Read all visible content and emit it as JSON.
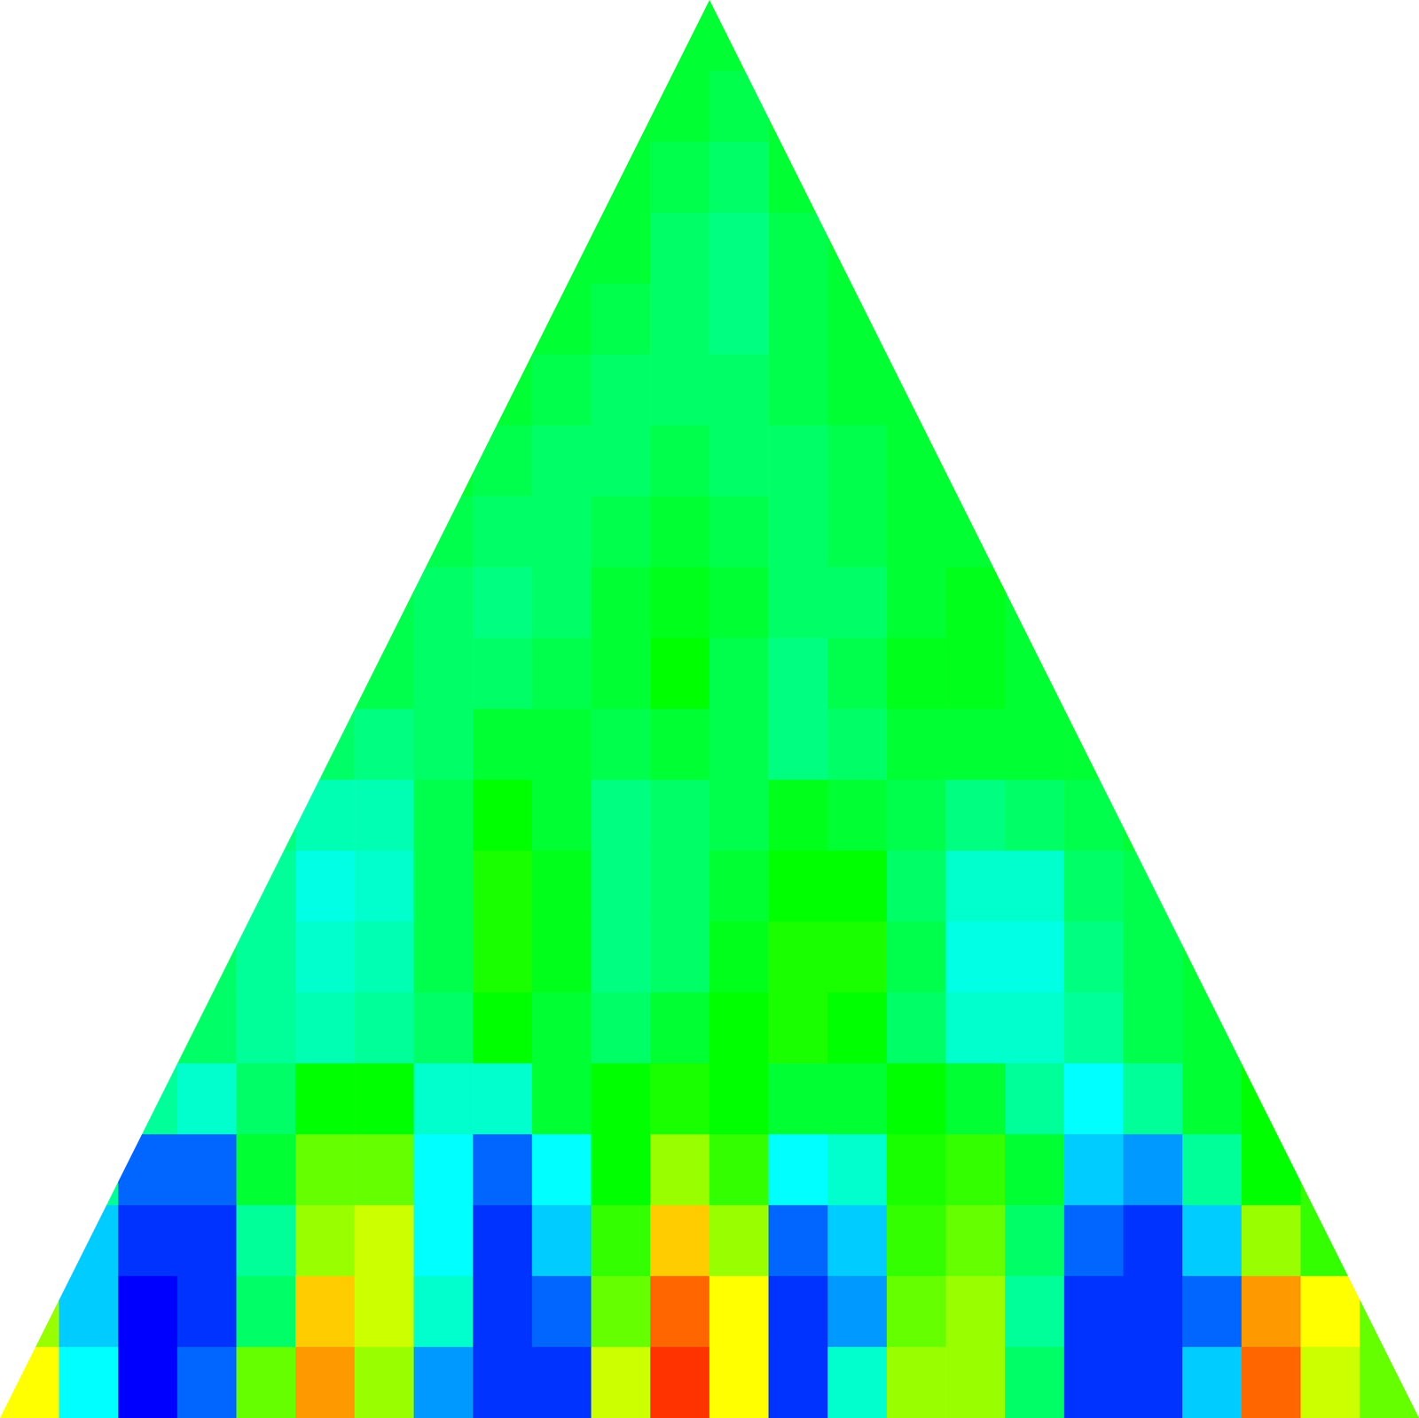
{
  "chart_data": {
    "type": "heatmap",
    "tick_labels": false,
    "grid": false,
    "color_range": [
      -1,
      1
    ],
    "cells": [
      [
        null,
        null,
        null,
        null,
        null,
        null,
        null,
        null,
        null,
        null,
        null,
        -0.1,
        -0.1,
        null,
        null,
        null,
        null,
        null,
        null,
        null,
        null,
        null,
        null,
        null
      ],
      [
        null,
        null,
        null,
        null,
        null,
        null,
        null,
        null,
        null,
        null,
        -0.1,
        -0.1,
        -0.15,
        -0.1,
        null,
        null,
        null,
        null,
        null,
        null,
        null,
        null,
        null,
        null
      ],
      [
        null,
        null,
        null,
        null,
        null,
        null,
        null,
        null,
        null,
        null,
        -0.1,
        -0.15,
        -0.2,
        -0.1,
        null,
        null,
        null,
        null,
        null,
        null,
        null,
        null,
        null,
        null
      ],
      [
        null,
        null,
        null,
        null,
        null,
        null,
        null,
        null,
        null,
        -0.1,
        -0.1,
        -0.2,
        -0.25,
        -0.15,
        -0.1,
        null,
        null,
        null,
        null,
        null,
        null,
        null,
        null,
        null
      ],
      [
        null,
        null,
        null,
        null,
        null,
        null,
        null,
        null,
        null,
        -0.1,
        -0.15,
        -0.2,
        -0.25,
        -0.15,
        -0.1,
        null,
        null,
        null,
        null,
        null,
        null,
        null,
        null,
        null
      ],
      [
        null,
        null,
        null,
        null,
        null,
        null,
        null,
        null,
        -0.1,
        -0.15,
        -0.2,
        -0.2,
        -0.2,
        -0.15,
        -0.1,
        -0.1,
        null,
        null,
        null,
        null,
        null,
        null,
        null,
        null
      ],
      [
        null,
        null,
        null,
        null,
        null,
        null,
        null,
        -0.1,
        -0.15,
        -0.2,
        -0.2,
        -0.15,
        -0.2,
        -0.2,
        -0.15,
        -0.1,
        -0.1,
        null,
        null,
        null,
        null,
        null,
        null,
        null
      ],
      [
        null,
        null,
        null,
        null,
        null,
        null,
        null,
        -0.15,
        -0.2,
        -0.2,
        -0.15,
        -0.1,
        -0.15,
        -0.2,
        -0.15,
        -0.1,
        -0.1,
        null,
        null,
        null,
        null,
        null,
        null,
        null
      ],
      [
        null,
        null,
        null,
        null,
        null,
        null,
        -0.15,
        -0.2,
        -0.25,
        -0.2,
        -0.1,
        -0.05,
        -0.1,
        -0.2,
        -0.2,
        -0.1,
        -0.05,
        -0.1,
        null,
        null,
        null,
        null,
        null,
        null
      ],
      [
        null,
        null,
        null,
        null,
        null,
        null,
        -0.15,
        -0.2,
        -0.2,
        -0.15,
        -0.1,
        0,
        -0.15,
        -0.25,
        -0.15,
        -0.05,
        -0.05,
        -0.1,
        null,
        null,
        null,
        null,
        null,
        null
      ],
      [
        null,
        null,
        null,
        null,
        null,
        -0.2,
        -0.25,
        -0.2,
        -0.1,
        -0.1,
        -0.15,
        -0.1,
        -0.15,
        -0.25,
        -0.2,
        -0.1,
        -0.1,
        -0.1,
        -0.1,
        null,
        null,
        null,
        null,
        null
      ],
      [
        null,
        null,
        null,
        null,
        -0.25,
        -0.35,
        -0.35,
        -0.15,
        0,
        -0.1,
        -0.25,
        -0.2,
        -0.15,
        -0.05,
        -0.1,
        -0.15,
        -0.25,
        -0.2,
        -0.15,
        -0.1,
        null,
        null,
        null,
        null
      ],
      [
        null,
        null,
        null,
        null,
        -0.3,
        -0.45,
        -0.4,
        -0.15,
        0.05,
        -0.05,
        -0.25,
        -0.2,
        -0.1,
        0,
        0,
        -0.2,
        -0.4,
        -0.4,
        -0.2,
        -0.15,
        null,
        null,
        null,
        null
      ],
      [
        null,
        null,
        null,
        -0.2,
        -0.3,
        -0.4,
        -0.35,
        -0.15,
        0.05,
        -0.05,
        -0.25,
        -0.2,
        -0.05,
        0.05,
        0.05,
        -0.15,
        -0.45,
        -0.45,
        -0.25,
        -0.15,
        -0.1,
        null,
        null,
        null
      ],
      [
        null,
        null,
        null,
        -0.2,
        -0.3,
        -0.35,
        -0.3,
        -0.2,
        0,
        -0.1,
        -0.2,
        -0.1,
        0,
        0.05,
        0,
        -0.2,
        -0.4,
        -0.4,
        -0.3,
        -0.15,
        -0.1,
        null,
        null,
        null
      ],
      [
        null,
        null,
        -0.3,
        -0.4,
        -0.2,
        0,
        0,
        -0.4,
        -0.4,
        -0.1,
        0,
        0.05,
        0,
        -0.1,
        -0.1,
        0,
        -0.1,
        -0.3,
        -0.5,
        -0.3,
        -0.1,
        0,
        null,
        null
      ],
      [
        null,
        -0.3,
        -0.8,
        -0.8,
        -0.1,
        0.2,
        0.2,
        -0.5,
        -0.8,
        -0.5,
        0,
        0.3,
        0.1,
        -0.5,
        -0.4,
        0.05,
        0.1,
        -0.1,
        -0.6,
        -0.7,
        -0.3,
        0,
        0.1,
        null
      ],
      [
        null,
        -0.6,
        -0.9,
        -0.9,
        -0.3,
        0.3,
        0.4,
        -0.5,
        -0.9,
        -0.6,
        0.1,
        0.6,
        0.3,
        -0.8,
        -0.6,
        0.1,
        0.2,
        -0.2,
        -0.8,
        -0.9,
        -0.6,
        0.3,
        0.1,
        null
      ],
      [
        0.3,
        -0.6,
        -1,
        -0.9,
        -0.2,
        0.6,
        0.4,
        -0.4,
        -0.9,
        -0.8,
        0.2,
        0.8,
        0.5,
        -0.9,
        -0.7,
        0.2,
        0.3,
        -0.3,
        -0.9,
        -0.9,
        -0.8,
        0.7,
        0.5,
        0.2
      ],
      [
        0.5,
        -0.5,
        -1,
        -0.8,
        0.2,
        0.7,
        0.3,
        -0.7,
        -0.9,
        -0.9,
        0.4,
        0.9,
        0.5,
        -0.9,
        -0.4,
        0.3,
        0.3,
        -0.2,
        -0.9,
        -0.9,
        -0.6,
        0.8,
        0.4,
        0.2
      ]
    ]
  }
}
